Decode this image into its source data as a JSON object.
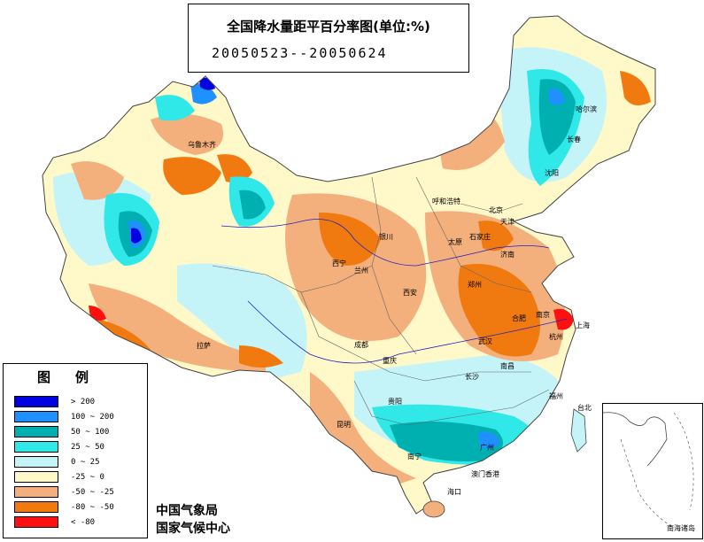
{
  "title": {
    "line1": "全国降水量距平百分率图(单位:%)",
    "line2": "20050523--20050624"
  },
  "legend": {
    "title": "图例",
    "items": [
      {
        "label": "> 200",
        "color": "#0000e0"
      },
      {
        "label": "100 ~ 200",
        "color": "#1e90ff"
      },
      {
        "label": "50 ~ 100",
        "color": "#00b0b0"
      },
      {
        "label": "25 ~ 50",
        "color": "#30e8e8"
      },
      {
        "label": "0 ~ 25",
        "color": "#c4f4f8"
      },
      {
        "label": "-25 ~ 0",
        "color": "#fff8c8"
      },
      {
        "label": "-50 ~ -25",
        "color": "#f4b07c"
      },
      {
        "label": "-80 ~ -50",
        "color": "#f07a10"
      },
      {
        "label": "< -80",
        "color": "#ff1010"
      }
    ]
  },
  "agency": {
    "line1": "中国气象局",
    "line2": "国家气候中心"
  },
  "inset": {
    "label": "南海诸岛"
  },
  "cities": [
    {
      "name": "乌鲁木齐"
    },
    {
      "name": "哈尔滨"
    },
    {
      "name": "长春"
    },
    {
      "name": "沈阳"
    },
    {
      "name": "呼和浩特"
    },
    {
      "name": "北京"
    },
    {
      "name": "天津"
    },
    {
      "name": "石家庄"
    },
    {
      "name": "太原"
    },
    {
      "name": "济南"
    },
    {
      "name": "银川"
    },
    {
      "name": "西宁"
    },
    {
      "name": "兰州"
    },
    {
      "name": "西安"
    },
    {
      "name": "郑州"
    },
    {
      "name": "合肥"
    },
    {
      "name": "南京"
    },
    {
      "name": "上海"
    },
    {
      "name": "武汉"
    },
    {
      "name": "杭州"
    },
    {
      "name": "成都"
    },
    {
      "name": "重庆"
    },
    {
      "name": "拉萨"
    },
    {
      "name": "长沙"
    },
    {
      "name": "南昌"
    },
    {
      "name": "福州"
    },
    {
      "name": "贵阳"
    },
    {
      "name": "昆明"
    },
    {
      "name": "南宁"
    },
    {
      "name": "广州"
    },
    {
      "name": "台北"
    },
    {
      "name": "澳门香港"
    },
    {
      "name": "海口"
    }
  ]
}
